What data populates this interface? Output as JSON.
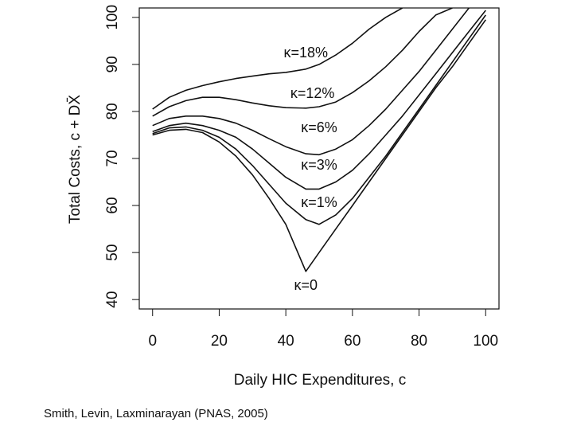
{
  "chart_data": {
    "type": "line",
    "xlabel": "Daily HIC Expenditures, c",
    "ylabel": "Total Costs, c + DX̄",
    "caption": "Smith, Levin, Laxminarayan (PNAS, 2005)",
    "x": [
      0,
      5,
      10,
      15,
      20,
      25,
      30,
      35,
      40,
      46,
      50,
      55,
      60,
      65,
      70,
      75,
      80,
      85,
      90,
      95,
      100
    ],
    "series": [
      {
        "name": "κ=18%",
        "color": "#111111",
        "values": [
          80.5,
          83,
          84.5,
          85.5,
          86.3,
          87,
          87.5,
          88,
          88.3,
          89,
          90,
          92,
          94.5,
          97.5,
          100,
          102,
          null,
          null,
          null,
          null,
          null
        ]
      },
      {
        "name": "κ=12%",
        "color": "#111111",
        "values": [
          79,
          81,
          82.3,
          83,
          83,
          82.5,
          81.8,
          81.2,
          80.8,
          80.7,
          81,
          82,
          84,
          86.5,
          89.5,
          93,
          97,
          100.5,
          102,
          null,
          null
        ]
      },
      {
        "name": "κ=6%",
        "color": "#111111",
        "values": [
          77,
          78.5,
          79,
          79,
          78.5,
          77.5,
          76,
          74.2,
          72.5,
          71,
          70.8,
          72,
          74,
          77,
          80.5,
          84.5,
          88.5,
          93,
          97.5,
          102,
          null
        ]
      },
      {
        "name": "κ=3%",
        "color": "#111111",
        "values": [
          75.7,
          77,
          77.5,
          77,
          76,
          74.5,
          72,
          69,
          66,
          63.5,
          63.5,
          65,
          67.5,
          71,
          75,
          79,
          83.5,
          88,
          92.5,
          97,
          101.5
        ]
      },
      {
        "name": "κ=1%",
        "color": "#111111",
        "values": [
          75.3,
          76.5,
          76.7,
          76,
          74.5,
          72,
          68.5,
          64.5,
          60.5,
          57,
          56,
          58,
          61.5,
          66,
          70.5,
          75.5,
          80.5,
          85.5,
          90.5,
          95.5,
          100.5
        ]
      },
      {
        "name": "κ=0",
        "color": "#111111",
        "values": [
          75,
          76,
          76.2,
          75.5,
          73.5,
          70.5,
          66.5,
          61.5,
          56,
          46,
          50,
          55,
          60,
          65,
          70,
          75,
          80,
          85,
          89.5,
          94.5,
          99.5
        ]
      }
    ],
    "xlim": [
      -4,
      104
    ],
    "ylim": [
      38,
      102
    ],
    "xticks": [
      0,
      20,
      40,
      60,
      80,
      100
    ],
    "yticks": [
      40,
      50,
      60,
      70,
      80,
      90,
      100
    ],
    "grid": false
  }
}
